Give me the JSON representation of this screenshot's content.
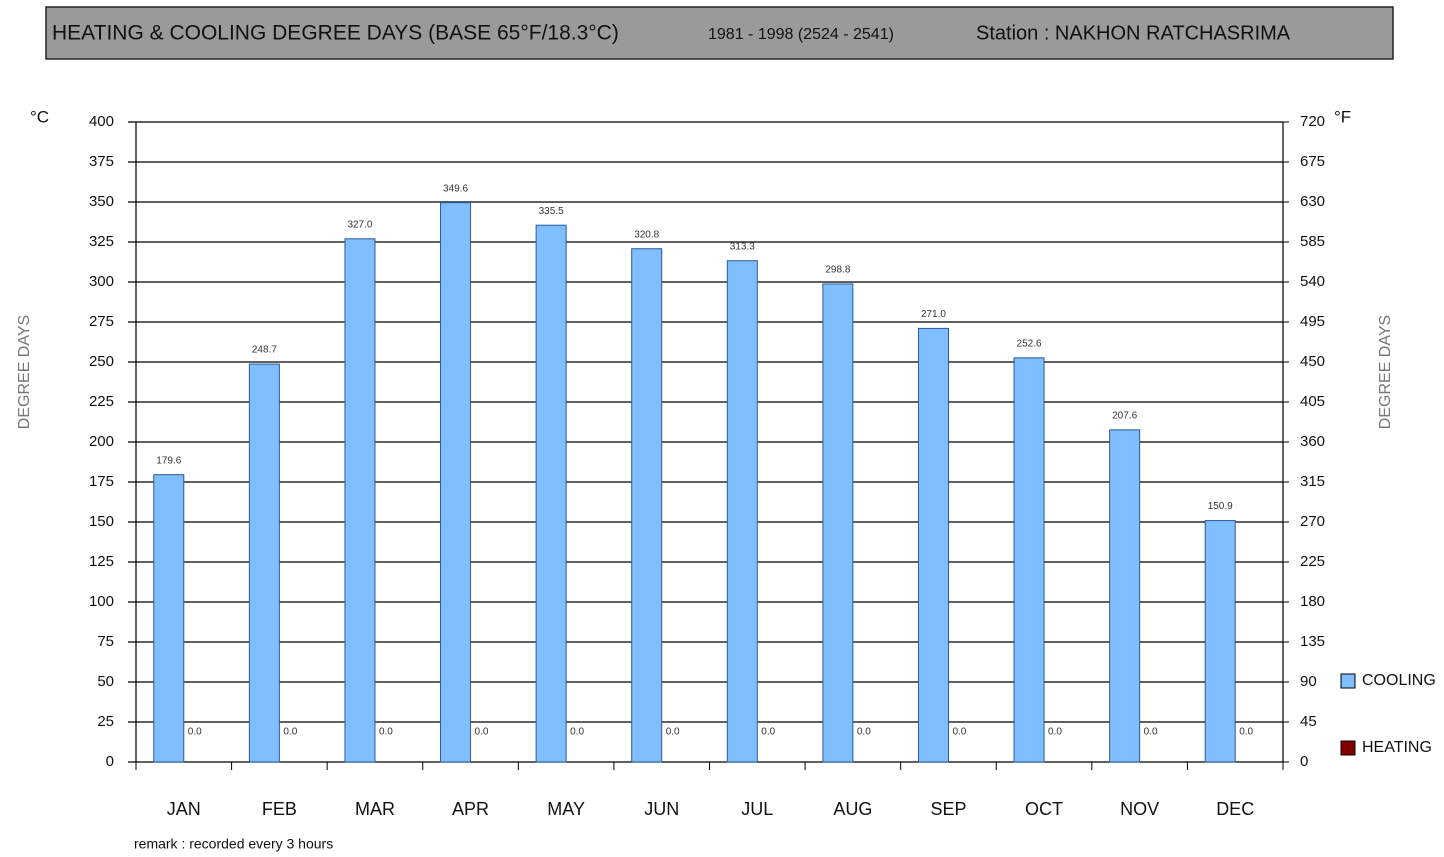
{
  "chart_data": {
    "type": "bar",
    "title": "HEATING & COOLING DEGREE DAYS (BASE 65°F/18.3°C)",
    "subtitle": "1981 - 1998 (2524 - 2541)",
    "station": "Station  : NAKHON RATCHASRIMA",
    "y_unit": "°C",
    "y2_unit": "°F",
    "y_label": "DEGREE DAYS",
    "y2_label": "DEGREE DAYS",
    "remark": "remark :  recorded every 3 hours",
    "categories": [
      "JAN",
      "FEB",
      "MAR",
      "APR",
      "MAY",
      "JUN",
      "JUL",
      "AUG",
      "SEP",
      "OCT",
      "NOV",
      "DEC"
    ],
    "series": [
      {
        "name": "COOLING",
        "color": "#80bfff",
        "values": [
          179.6,
          248.7,
          327.0,
          349.6,
          335.5,
          320.8,
          313.3,
          298.8,
          271.0,
          252.6,
          207.6,
          150.9
        ],
        "value_labels": [
          "179.6",
          "248.7",
          "327.0",
          "349.6",
          "335.5",
          "320.8",
          "313.3",
          "298.8",
          "271.0",
          "252.6",
          "207.6",
          "150.9"
        ]
      },
      {
        "name": "HEATING",
        "color": "#800000",
        "values": [
          0,
          0,
          0,
          0,
          0,
          0,
          0,
          0,
          0,
          0,
          0,
          0
        ],
        "value_labels": [
          "0.0",
          "0.0",
          "0.0",
          "0.0",
          "0.0",
          "0.0",
          "0.0",
          "0.0",
          "0.0",
          "0.0",
          "0.0",
          "0.0"
        ]
      }
    ],
    "ylim": [
      0,
      400
    ],
    "yticks": [
      0,
      25,
      50,
      75,
      100,
      125,
      150,
      175,
      200,
      225,
      250,
      275,
      300,
      325,
      350,
      375,
      400
    ],
    "y2lim": [
      0,
      720
    ],
    "y2ticks": [
      0,
      45,
      90,
      135,
      180,
      225,
      270,
      315,
      360,
      405,
      450,
      495,
      540,
      585,
      630,
      675,
      720
    ],
    "grid": true,
    "legend": "bottom-right"
  }
}
